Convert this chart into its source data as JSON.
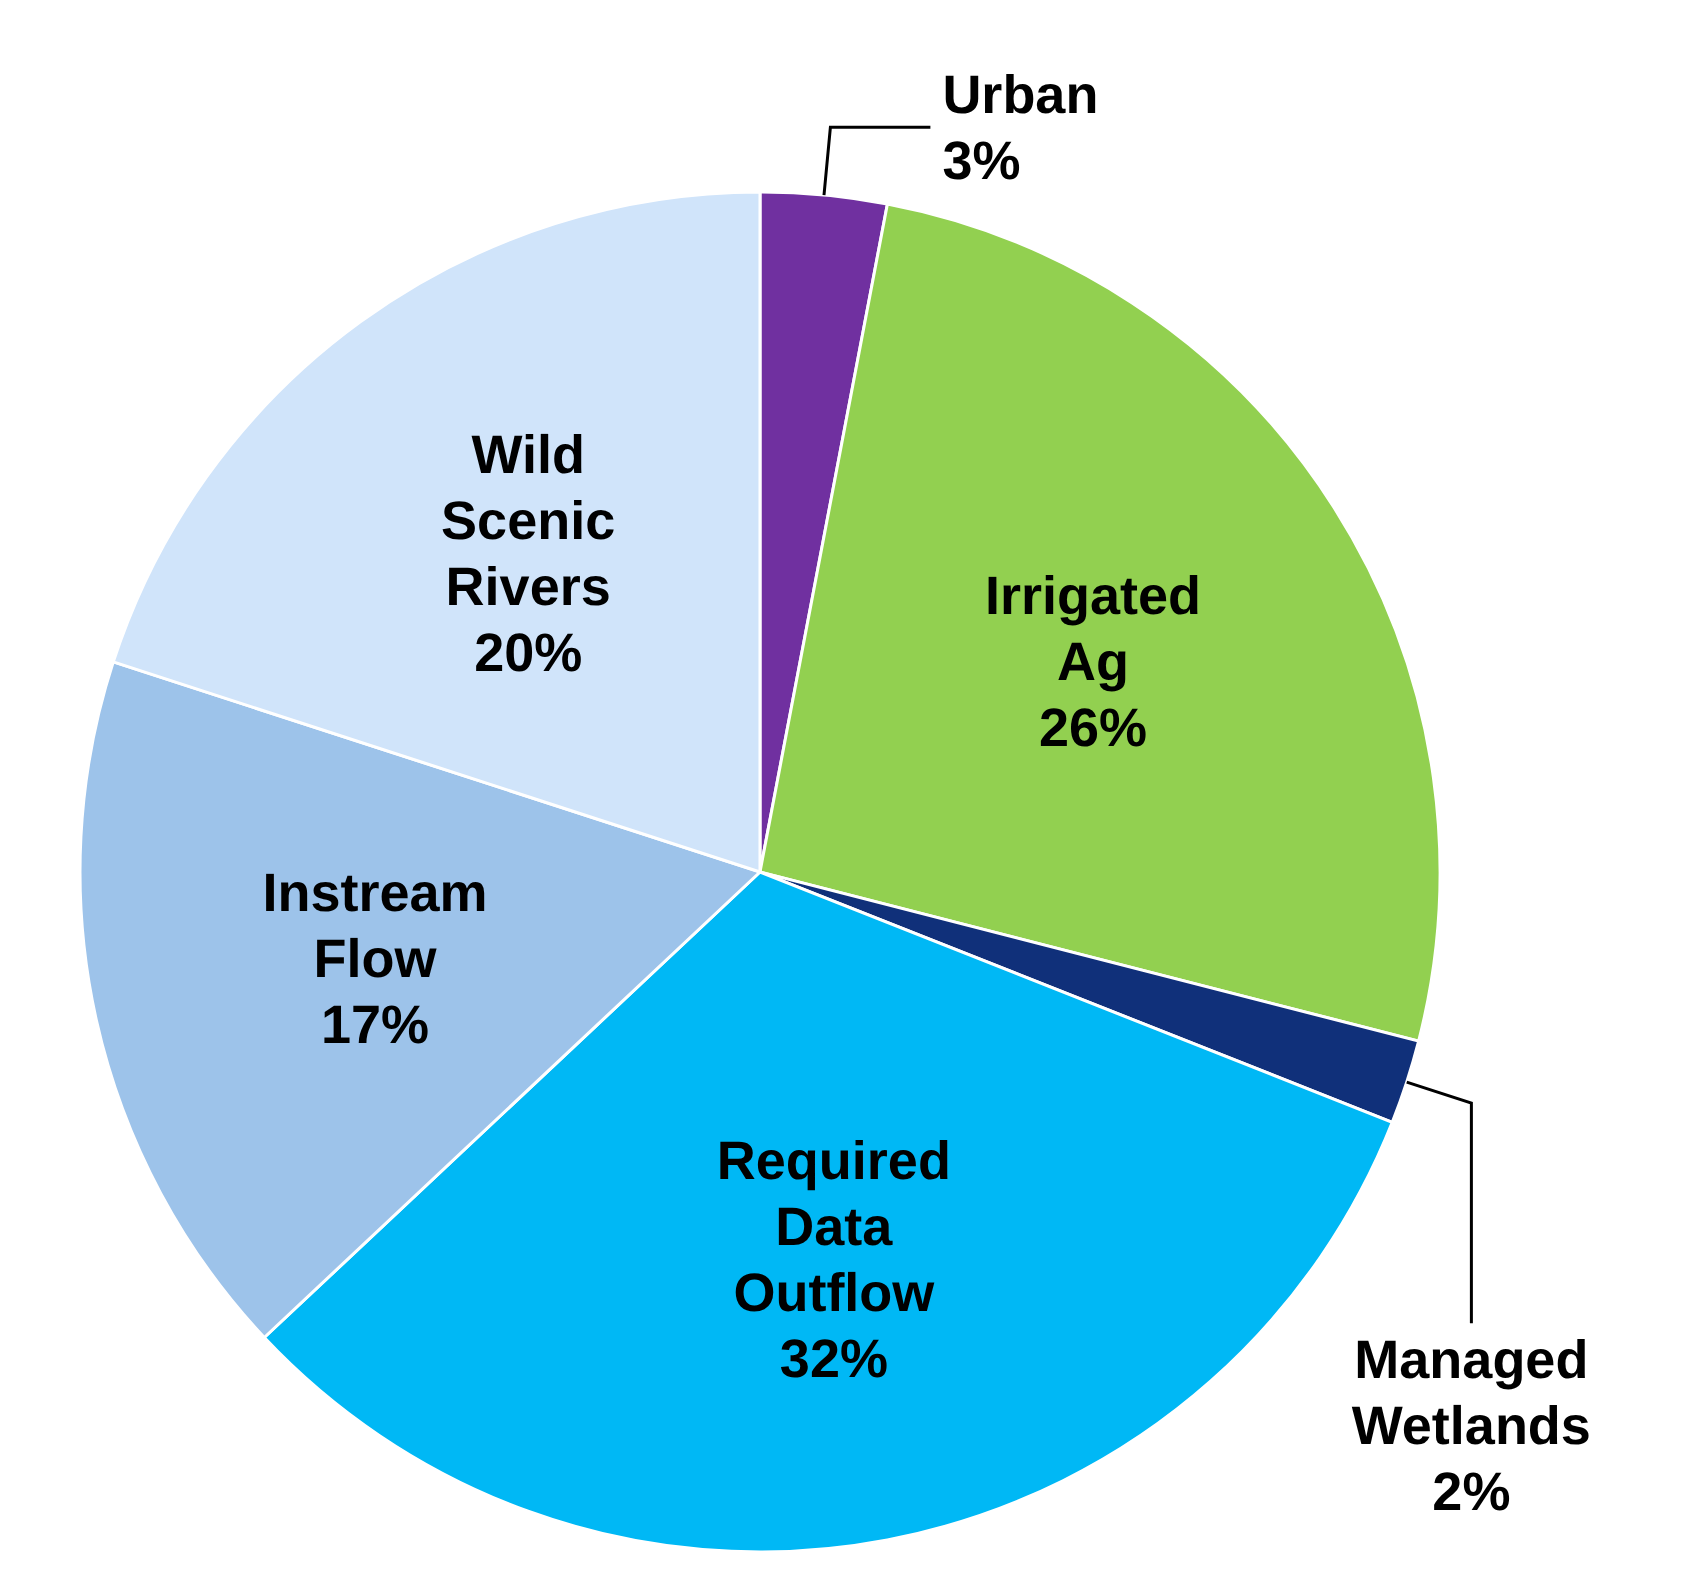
{
  "chart_data": {
    "type": "pie",
    "categories": [
      "Urban",
      "Irrigated Ag",
      "Managed Wetlands",
      "Required Data Outflow",
      "Instream Flow",
      "Wild Scenic Rivers"
    ],
    "values": [
      3,
      26,
      2,
      32,
      17,
      20
    ],
    "value_labels": [
      "3%",
      "26%",
      "2%",
      "32%",
      "17%",
      "20%"
    ],
    "colors": [
      "#7030a0",
      "#92d050",
      "#10307a",
      "#00b8f5",
      "#9dc3ea",
      "#d0e4fa"
    ]
  }
}
